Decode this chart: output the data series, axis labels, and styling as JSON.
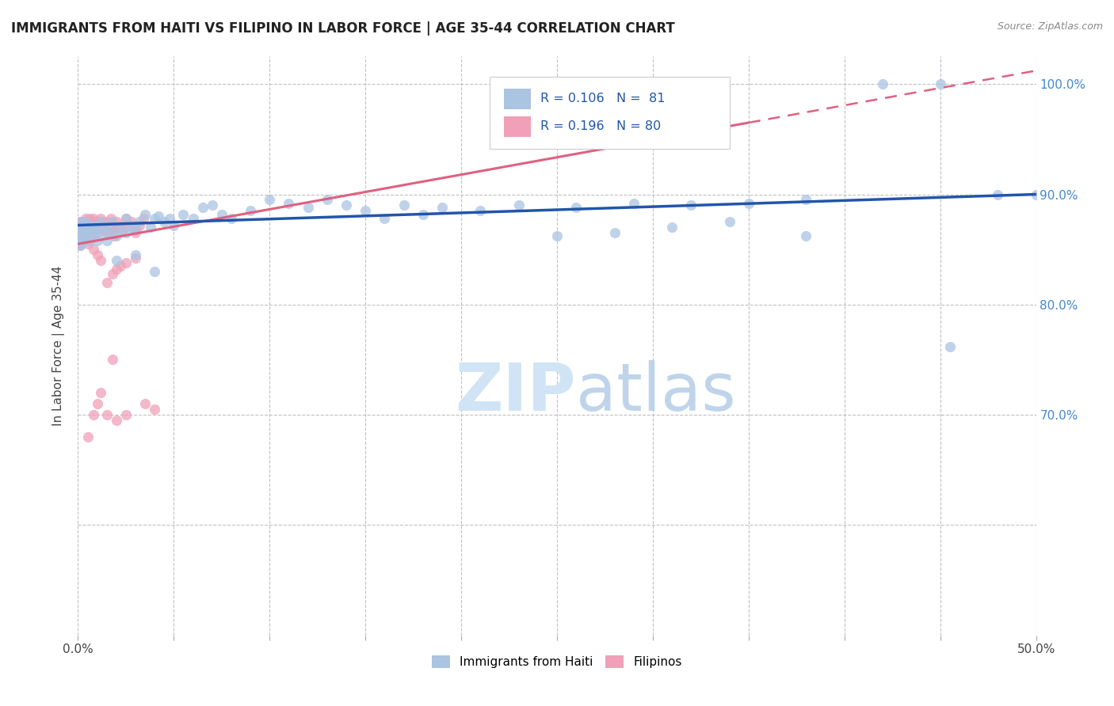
{
  "title": "IMMIGRANTS FROM HAITI VS FILIPINO IN LABOR FORCE | AGE 35-44 CORRELATION CHART",
  "source": "Source: ZipAtlas.com",
  "ylabel": "In Labor Force | Age 35-44",
  "xlim": [
    0.0,
    0.5
  ],
  "ylim": [
    0.5,
    1.025
  ],
  "haiti_color": "#aac4e2",
  "filipino_color": "#f0a0b8",
  "haiti_line_color": "#2255aa",
  "filipino_line_color": "#e06080",
  "background_color": "#ffffff",
  "grid_color": "#bbbbbb",
  "watermark_color": "#d0e4f5",
  "right_label_color": "#4488cc",
  "haiti_x": [
    0.001,
    0.001,
    0.001,
    0.001,
    0.001,
    0.002,
    0.002,
    0.002,
    0.003,
    0.003,
    0.003,
    0.004,
    0.004,
    0.005,
    0.005,
    0.005,
    0.006,
    0.006,
    0.007,
    0.008,
    0.008,
    0.009,
    0.01,
    0.01,
    0.012,
    0.013,
    0.015,
    0.015,
    0.017,
    0.018,
    0.02,
    0.022,
    0.025,
    0.025,
    0.028,
    0.03,
    0.032,
    0.035,
    0.038,
    0.04,
    0.042,
    0.045,
    0.048,
    0.05,
    0.055,
    0.06,
    0.065,
    0.07,
    0.075,
    0.08,
    0.09,
    0.1,
    0.11,
    0.12,
    0.13,
    0.14,
    0.15,
    0.16,
    0.17,
    0.18,
    0.19,
    0.21,
    0.23,
    0.26,
    0.29,
    0.32,
    0.35,
    0.38,
    0.02,
    0.03,
    0.04,
    0.25,
    0.28,
    0.31,
    0.34,
    0.38,
    0.42,
    0.45,
    0.48,
    0.5,
    0.455
  ],
  "haiti_y": [
    0.86,
    0.858,
    0.856,
    0.872,
    0.854,
    0.862,
    0.875,
    0.868,
    0.87,
    0.858,
    0.862,
    0.875,
    0.865,
    0.868,
    0.86,
    0.872,
    0.858,
    0.87,
    0.865,
    0.872,
    0.862,
    0.868,
    0.87,
    0.858,
    0.875,
    0.865,
    0.87,
    0.858,
    0.865,
    0.875,
    0.862,
    0.87,
    0.878,
    0.865,
    0.872,
    0.868,
    0.875,
    0.882,
    0.87,
    0.878,
    0.88,
    0.875,
    0.878,
    0.872,
    0.882,
    0.878,
    0.888,
    0.89,
    0.882,
    0.878,
    0.885,
    0.895,
    0.892,
    0.888,
    0.895,
    0.89,
    0.885,
    0.878,
    0.89,
    0.882,
    0.888,
    0.885,
    0.89,
    0.888,
    0.892,
    0.89,
    0.892,
    0.895,
    0.84,
    0.845,
    0.83,
    0.862,
    0.865,
    0.87,
    0.875,
    0.862,
    1.0,
    1.0,
    0.9,
    0.9,
    0.762
  ],
  "filipino_x": [
    0.001,
    0.001,
    0.001,
    0.001,
    0.001,
    0.001,
    0.001,
    0.001,
    0.001,
    0.002,
    0.002,
    0.002,
    0.002,
    0.002,
    0.003,
    0.003,
    0.003,
    0.003,
    0.004,
    0.004,
    0.004,
    0.005,
    0.005,
    0.005,
    0.005,
    0.006,
    0.006,
    0.006,
    0.007,
    0.007,
    0.007,
    0.008,
    0.008,
    0.009,
    0.009,
    0.01,
    0.01,
    0.011,
    0.012,
    0.012,
    0.013,
    0.014,
    0.015,
    0.015,
    0.016,
    0.017,
    0.018,
    0.018,
    0.019,
    0.02,
    0.02,
    0.022,
    0.023,
    0.025,
    0.025,
    0.028,
    0.03,
    0.03,
    0.032,
    0.034,
    0.015,
    0.018,
    0.022,
    0.01,
    0.008,
    0.005,
    0.012,
    0.02,
    0.025,
    0.03,
    0.018,
    0.012,
    0.008,
    0.005,
    0.035,
    0.04,
    0.025,
    0.02,
    0.015,
    0.01
  ],
  "filipino_y": [
    0.862,
    0.87,
    0.858,
    0.865,
    0.875,
    0.868,
    0.872,
    0.86,
    0.854,
    0.87,
    0.862,
    0.875,
    0.868,
    0.858,
    0.865,
    0.875,
    0.87,
    0.858,
    0.872,
    0.865,
    0.878,
    0.868,
    0.875,
    0.87,
    0.862,
    0.878,
    0.87,
    0.865,
    0.875,
    0.868,
    0.862,
    0.878,
    0.87,
    0.875,
    0.868,
    0.87,
    0.865,
    0.872,
    0.878,
    0.875,
    0.87,
    0.868,
    0.875,
    0.865,
    0.872,
    0.878,
    0.87,
    0.868,
    0.862,
    0.875,
    0.87,
    0.872,
    0.868,
    0.878,
    0.87,
    0.875,
    0.868,
    0.865,
    0.872,
    0.878,
    0.82,
    0.828,
    0.835,
    0.845,
    0.85,
    0.855,
    0.84,
    0.832,
    0.838,
    0.842,
    0.75,
    0.72,
    0.7,
    0.68,
    0.71,
    0.705,
    0.7,
    0.695,
    0.7,
    0.71
  ]
}
